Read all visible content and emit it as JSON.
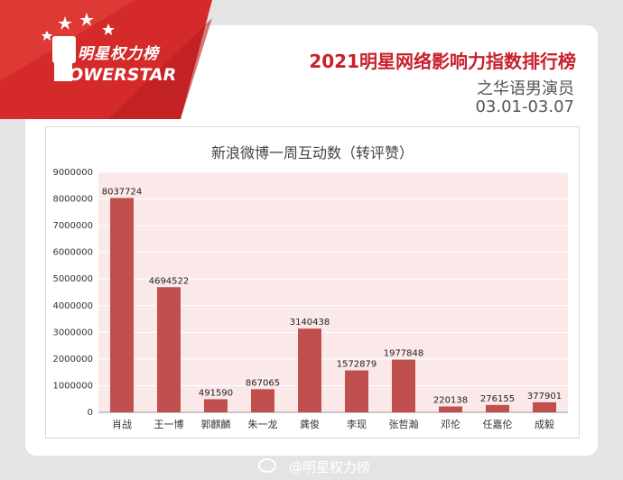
{
  "brand": {
    "logo_cn": "明星权力榜",
    "logo_en": "OWERSTAR",
    "colors": {
      "banner": "#d42a2a",
      "bar": "#c0504d",
      "plot_bg": "#fbe9e9"
    }
  },
  "header": {
    "title": "2021明星网络影响力指数排行榜",
    "subtitle": "之华语男演员",
    "date_range": "03.01-03.07"
  },
  "watermark": "@明星权力榜",
  "chart_data": {
    "type": "bar",
    "title": "新浪微博一周互动数（转评赞）",
    "categories": [
      "肖战",
      "王一博",
      "郭麒麟",
      "朱一龙",
      "龚俊",
      "李现",
      "张哲瀚",
      "邓伦",
      "任嘉伦",
      "成毅"
    ],
    "values": [
      8037724,
      4694522,
      491590,
      867065,
      3140438,
      1572879,
      1977848,
      220138,
      276155,
      377901
    ],
    "data_labels": [
      "8037724",
      "4694522",
      "491590",
      "867065",
      "3140438",
      "1572879",
      "1977848",
      "220138",
      "276155",
      "377901"
    ],
    "yticks": [
      "0",
      "1000000",
      "2000000",
      "3000000",
      "4000000",
      "5000000",
      "6000000",
      "7000000",
      "8000000",
      "9000000"
    ],
    "ylim": [
      0,
      9000000
    ],
    "grid": true,
    "legend": "none"
  }
}
